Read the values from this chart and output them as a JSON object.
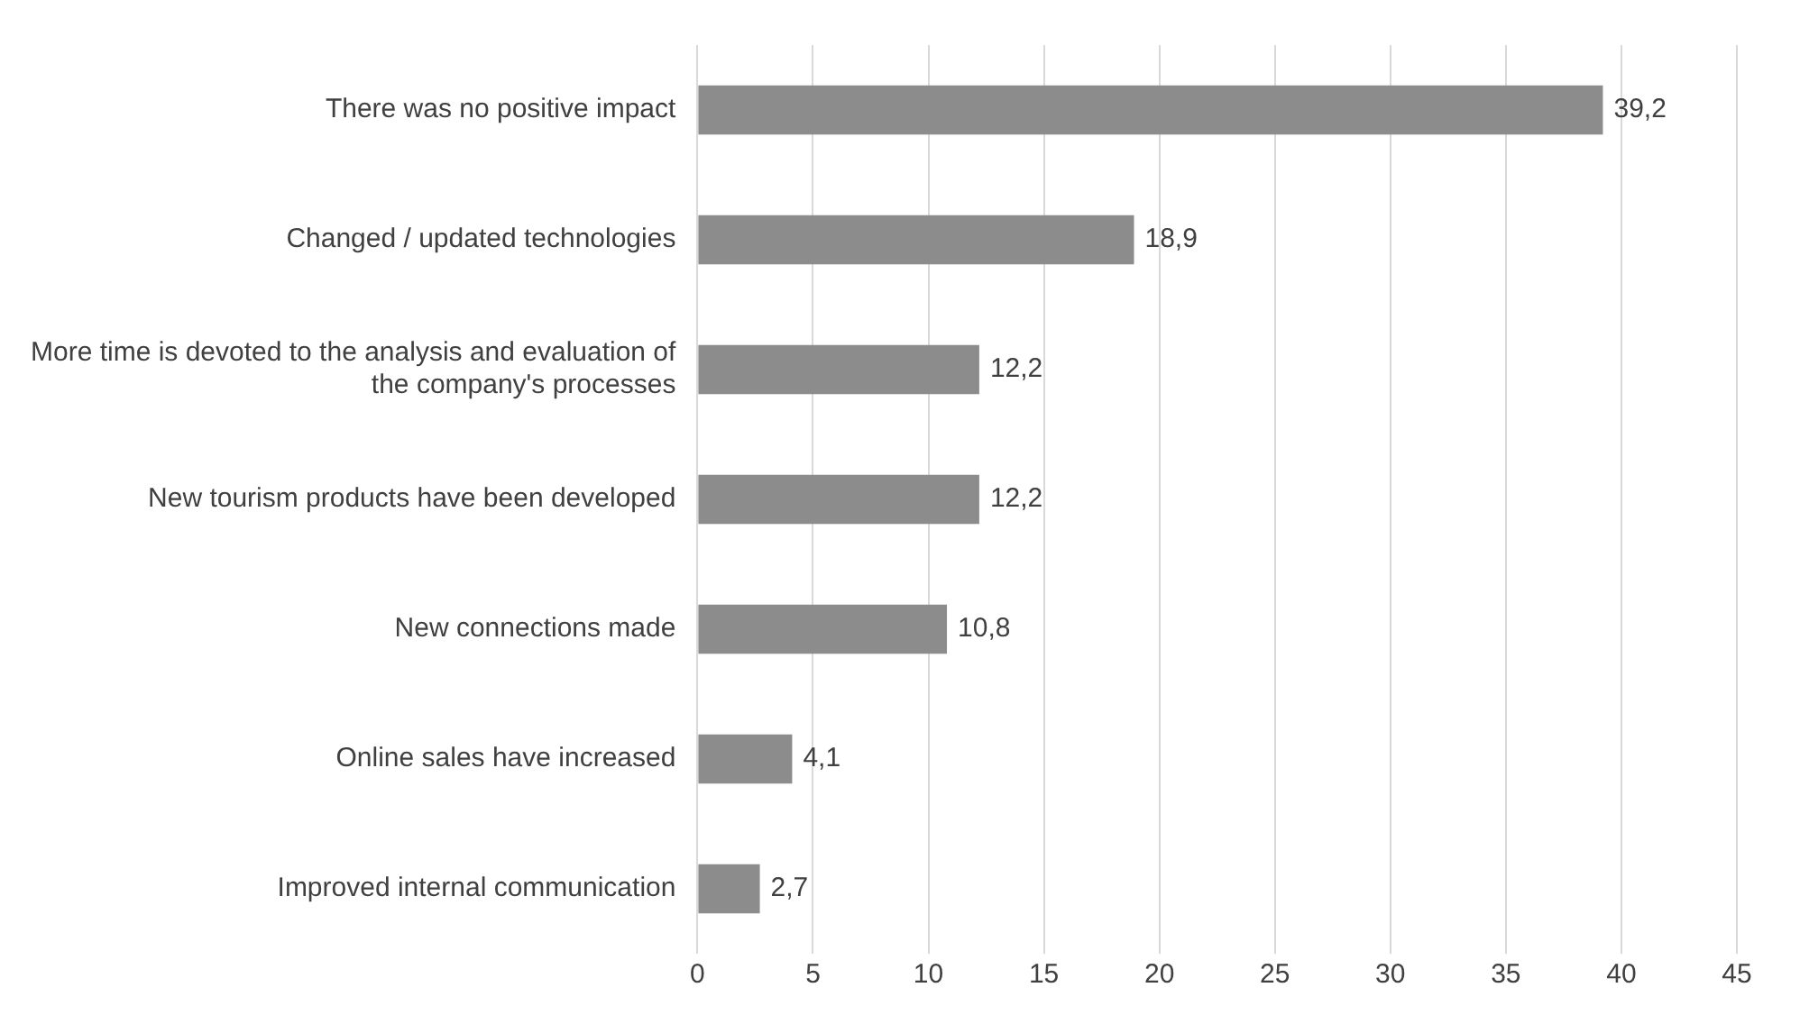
{
  "chart_data": {
    "type": "bar",
    "orientation": "horizontal",
    "categories": [
      "There was no positive impact",
      "Changed / updated technologies",
      "More time is devoted to the analysis and evaluation of the company's processes",
      "New tourism products have been developed",
      "New connections made",
      "Online sales have increased",
      "Improved internal communication"
    ],
    "values": [
      39.2,
      18.9,
      12.2,
      12.2,
      10.8,
      4.1,
      2.7
    ],
    "value_labels": [
      "39,2",
      "18,9",
      "12,2",
      "12,2",
      "10,8",
      "4,1",
      "2,7"
    ],
    "color": "#8c8c8c",
    "xlim": [
      0,
      45
    ],
    "xticks": [
      0,
      5,
      10,
      15,
      20,
      25,
      30,
      35,
      40,
      45
    ],
    "grid": "x",
    "legend": false
  }
}
